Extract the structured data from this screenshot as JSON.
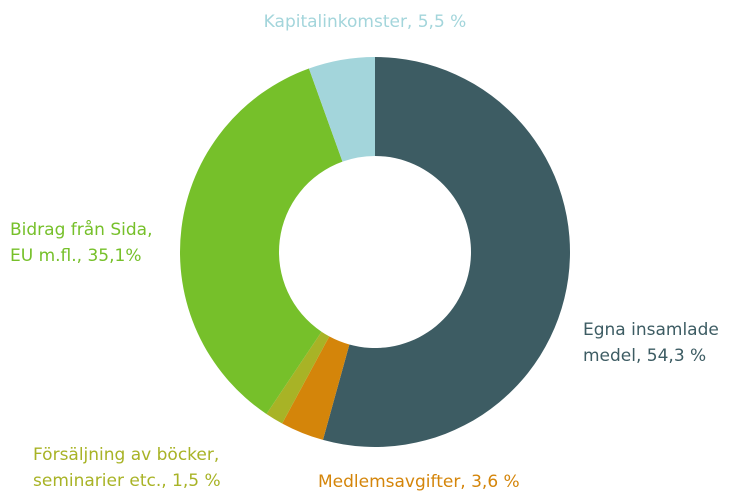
{
  "chart_data": {
    "type": "donut",
    "values": [
      54.3,
      3.6,
      1.5,
      35.1,
      5.5
    ],
    "value_labels": [
      [
        "Egna insamlade",
        "medel, 54,3 %"
      ],
      [
        "Medlemsavgifter, 3,6 %"
      ],
      [
        "Försäljning av böcker,",
        "seminarier etc., 1,5 %"
      ],
      [
        "Bidrag från Sida,",
        "EU m.fl., 35,1%"
      ],
      [
        "Kapitalinkomster, 5,5 %"
      ]
    ],
    "colors": [
      "#3d5c63",
      "#d4850a",
      "#a8b326",
      "#76c02a",
      "#a3d5db"
    ]
  }
}
